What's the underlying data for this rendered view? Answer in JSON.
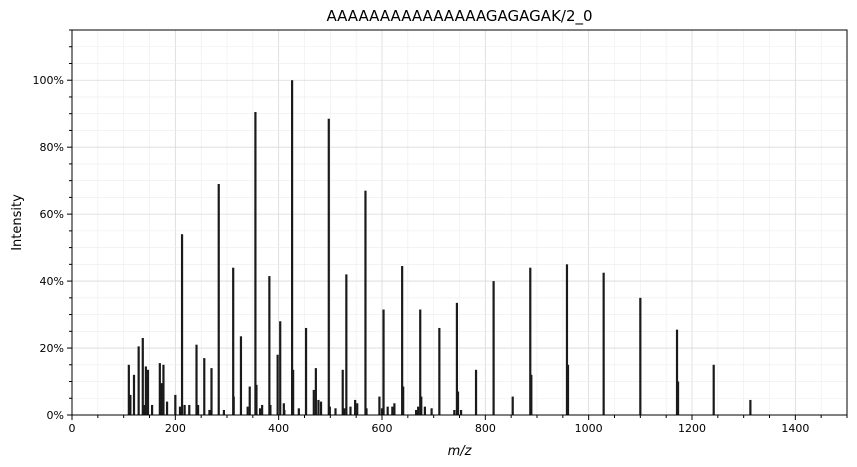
{
  "chart_data": {
    "type": "bar",
    "title": "AAAAAAAAAAAAAAAGAGAGAK/2_0",
    "xlabel": "m/z",
    "ylabel": "Intensity",
    "xlim": [
      0,
      1500
    ],
    "ylim": [
      0,
      115
    ],
    "x_ticks": [
      "0",
      "200",
      "400",
      "600",
      "800",
      "1000",
      "1200",
      "1400"
    ],
    "y_ticks": [
      "0%",
      "20%",
      "40%",
      "60%",
      "80%",
      "100%"
    ],
    "grid": true,
    "peaks": [
      {
        "mz": 110,
        "intensity": 15
      },
      {
        "mz": 113,
        "intensity": 6
      },
      {
        "mz": 120,
        "intensity": 12
      },
      {
        "mz": 129,
        "intensity": 20.5
      },
      {
        "mz": 137,
        "intensity": 23
      },
      {
        "mz": 140,
        "intensity": 3
      },
      {
        "mz": 143,
        "intensity": 14.5
      },
      {
        "mz": 147,
        "intensity": 13.5
      },
      {
        "mz": 155,
        "intensity": 3
      },
      {
        "mz": 170,
        "intensity": 15.5
      },
      {
        "mz": 173,
        "intensity": 9.5
      },
      {
        "mz": 177,
        "intensity": 15
      },
      {
        "mz": 184,
        "intensity": 4
      },
      {
        "mz": 200,
        "intensity": 6
      },
      {
        "mz": 209,
        "intensity": 2.5
      },
      {
        "mz": 213,
        "intensity": 54
      },
      {
        "mz": 218,
        "intensity": 3
      },
      {
        "mz": 227,
        "intensity": 3
      },
      {
        "mz": 241,
        "intensity": 21
      },
      {
        "mz": 244,
        "intensity": 3
      },
      {
        "mz": 256,
        "intensity": 17
      },
      {
        "mz": 266,
        "intensity": 1.5
      },
      {
        "mz": 270,
        "intensity": 14
      },
      {
        "mz": 284,
        "intensity": 69
      },
      {
        "mz": 294,
        "intensity": 1.5
      },
      {
        "mz": 312,
        "intensity": 44
      },
      {
        "mz": 313,
        "intensity": 5.5
      },
      {
        "mz": 327,
        "intensity": 23.5
      },
      {
        "mz": 340,
        "intensity": 2.5
      },
      {
        "mz": 344,
        "intensity": 8.5
      },
      {
        "mz": 355,
        "intensity": 90.5
      },
      {
        "mz": 357,
        "intensity": 9
      },
      {
        "mz": 364,
        "intensity": 2
      },
      {
        "mz": 368,
        "intensity": 3
      },
      {
        "mz": 382,
        "intensity": 41.5
      },
      {
        "mz": 384,
        "intensity": 3
      },
      {
        "mz": 398,
        "intensity": 18
      },
      {
        "mz": 403,
        "intensity": 28
      },
      {
        "mz": 410,
        "intensity": 3.5
      },
      {
        "mz": 411,
        "intensity": 1.5
      },
      {
        "mz": 426,
        "intensity": 100
      },
      {
        "mz": 428,
        "intensity": 13.5
      },
      {
        "mz": 439,
        "intensity": 2
      },
      {
        "mz": 453,
        "intensity": 26
      },
      {
        "mz": 468,
        "intensity": 7.5
      },
      {
        "mz": 472,
        "intensity": 14
      },
      {
        "mz": 477,
        "intensity": 4.5
      },
      {
        "mz": 482,
        "intensity": 4
      },
      {
        "mz": 497,
        "intensity": 88.5
      },
      {
        "mz": 499,
        "intensity": 2.5
      },
      {
        "mz": 510,
        "intensity": 2
      },
      {
        "mz": 524,
        "intensity": 13.5
      },
      {
        "mz": 527,
        "intensity": 2
      },
      {
        "mz": 531,
        "intensity": 42
      },
      {
        "mz": 539,
        "intensity": 2.5
      },
      {
        "mz": 548,
        "intensity": 4.5
      },
      {
        "mz": 552,
        "intensity": 3.5
      },
      {
        "mz": 568,
        "intensity": 67
      },
      {
        "mz": 570,
        "intensity": 2
      },
      {
        "mz": 595,
        "intensity": 5.5
      },
      {
        "mz": 600,
        "intensity": 2
      },
      {
        "mz": 603,
        "intensity": 31.5
      },
      {
        "mz": 611,
        "intensity": 2.5
      },
      {
        "mz": 620,
        "intensity": 2.5
      },
      {
        "mz": 624,
        "intensity": 3.5
      },
      {
        "mz": 639,
        "intensity": 44.5
      },
      {
        "mz": 641,
        "intensity": 8.5
      },
      {
        "mz": 666,
        "intensity": 1.5
      },
      {
        "mz": 670,
        "intensity": 2.5
      },
      {
        "mz": 674,
        "intensity": 31.5
      },
      {
        "mz": 676,
        "intensity": 5.5
      },
      {
        "mz": 683,
        "intensity": 2.5
      },
      {
        "mz": 696,
        "intensity": 2
      },
      {
        "mz": 711,
        "intensity": 26
      },
      {
        "mz": 740,
        "intensity": 1.5
      },
      {
        "mz": 745,
        "intensity": 33.5
      },
      {
        "mz": 747,
        "intensity": 7
      },
      {
        "mz": 753,
        "intensity": 1.5
      },
      {
        "mz": 782,
        "intensity": 13.5
      },
      {
        "mz": 816,
        "intensity": 40
      },
      {
        "mz": 853,
        "intensity": 5.5
      },
      {
        "mz": 887,
        "intensity": 44
      },
      {
        "mz": 889,
        "intensity": 12
      },
      {
        "mz": 958,
        "intensity": 45
      },
      {
        "mz": 960,
        "intensity": 15
      },
      {
        "mz": 1029,
        "intensity": 42.5
      },
      {
        "mz": 1100,
        "intensity": 35
      },
      {
        "mz": 1171,
        "intensity": 25.5
      },
      {
        "mz": 1173,
        "intensity": 10
      },
      {
        "mz": 1242,
        "intensity": 15
      },
      {
        "mz": 1313,
        "intensity": 4.5
      }
    ]
  }
}
